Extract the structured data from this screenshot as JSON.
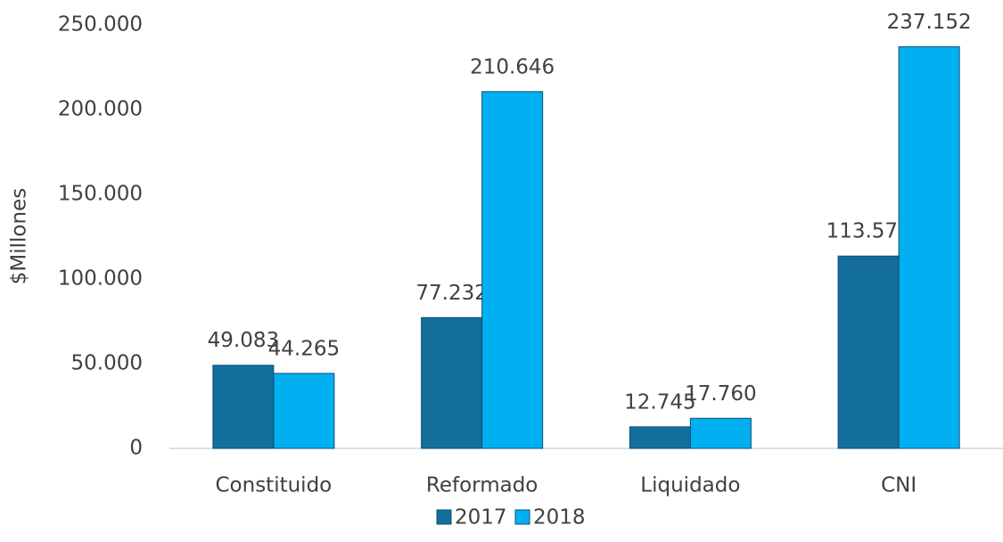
{
  "chart_data": {
    "type": "bar",
    "y_label": "$Millones",
    "categories": [
      "Constituido",
      "Reformado",
      "Liquidado",
      "CNI"
    ],
    "series": [
      {
        "name": "2017",
        "color": "#136e9c",
        "values": [
          49083,
          77232,
          12745,
          113570
        ],
        "value_labels": [
          "49.083",
          "77.232",
          "12.745",
          "113.570"
        ]
      },
      {
        "name": "2018",
        "color": "#00b0f0",
        "values": [
          44265,
          210646,
          17760,
          237152
        ],
        "value_labels": [
          "44.265",
          "210.646",
          "17.760",
          "237.152"
        ]
      }
    ],
    "ylim": [
      0,
      250000
    ],
    "yticks": [
      0,
      {
        "value": 50000,
        "label": "50.000"
      },
      {
        "value": 100000,
        "label": "100.000"
      },
      {
        "value": 150000,
        "label": "150.000"
      },
      {
        "value": 200000,
        "label": "200.000"
      },
      {
        "value": 250000,
        "label": "250.000"
      }
    ],
    "grid": false,
    "legend": "bottom"
  }
}
